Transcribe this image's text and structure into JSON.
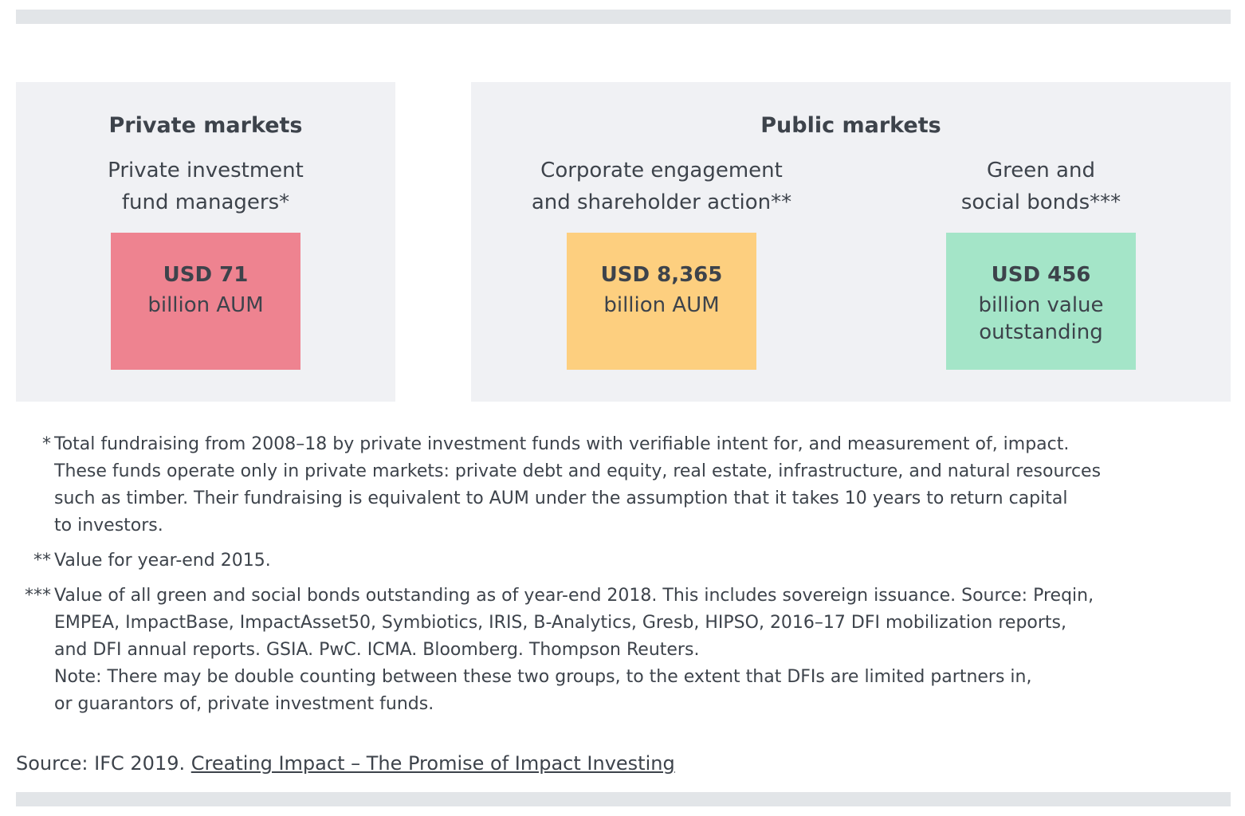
{
  "private_markets": {
    "heading": "Private markets",
    "subtitle_lines": [
      "Private investment",
      "fund managers*"
    ],
    "box": {
      "amount": "USD 71",
      "desc_lines": [
        "billion AUM"
      ],
      "color": "#ee8390"
    }
  },
  "public_markets": {
    "heading": "Public markets",
    "corporate": {
      "subtitle_lines": [
        "Corporate engagement",
        "and shareholder action**"
      ],
      "box": {
        "amount": "USD 8,365",
        "desc_lines": [
          "billion AUM"
        ],
        "color": "#fdcf7f"
      }
    },
    "bonds": {
      "subtitle_lines": [
        "Green and",
        "social bonds***"
      ],
      "box": {
        "amount": "USD 456",
        "desc_lines": [
          "billion value",
          "outstanding"
        ],
        "color": "#a4e5c8"
      }
    }
  },
  "footnotes": [
    {
      "marker": "*",
      "lines": [
        "Total fundraising from 2008–18 by private investment funds with verifiable intent for, and measurement of, impact.",
        "These funds operate only in private markets: private debt and equity, real estate, infrastructure, and natural resources",
        "such as timber. Their fundraising is equivalent to AUM under the assumption that it takes 10 years to return capital",
        "to investors."
      ]
    },
    {
      "marker": "**",
      "lines": [
        "Value for year-end 2015."
      ]
    },
    {
      "marker": "***",
      "lines": [
        "Value of all green and social bonds outstanding as of year-end 2018. This includes sovereign issuance. Source: Preqin,",
        "EMPEA, ImpactBase, ImpactAsset50, Symbiotics, IRIS, B-Analytics, Gresb, HIPSO, 2016–17 DFI mobilization reports,",
        "and DFI annual reports. GSIA. PwC. ICMA. Bloomberg. Thompson Reuters.",
        "Note: There may be double counting between these two groups, to the extent that DFIs are limited partners in,",
        "or guarantors of, private investment funds."
      ]
    }
  ],
  "source": {
    "prefix": "Source: IFC 2019. ",
    "link_text": "Creating Impact – The Promise of Impact Investing"
  }
}
